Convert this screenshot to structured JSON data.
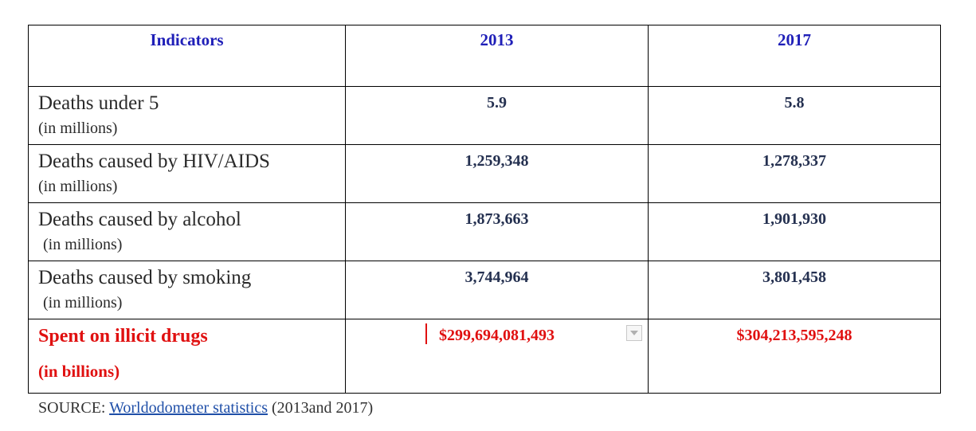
{
  "table": {
    "headers": [
      "Indicators",
      "2013",
      "2017"
    ],
    "rows": [
      {
        "label": "Deaths under 5",
        "sub": "(in millions)",
        "v2013": "5.9",
        "v2017": "5.8"
      },
      {
        "label": "Deaths caused by HIV/AIDS",
        "sub": "(in millions)",
        "v2013": "1,259,348",
        "v2017": "1,278,337"
      },
      {
        "label": "Deaths caused by alcohol",
        "sub": "(in millions)",
        "v2013": "1,873,663",
        "v2017": "1,901,930"
      },
      {
        "label": "Deaths caused by smoking",
        "sub": "(in millions)",
        "v2013": "3,744,964",
        "v2017": "3,801,458"
      },
      {
        "label": "Spent on illicit drugs",
        "sub": "(in billions)",
        "v2013": "$299,694,081,493",
        "v2017": "$304,213,595,248"
      }
    ]
  },
  "source": {
    "prefix": "SOURCE: ",
    "link_text": "Worldodometer statistics",
    "suffix": " (2013and 2017)"
  },
  "colors": {
    "header_text": "#1f1fb8",
    "highlight_red": "#e01010",
    "value_text": "#243050",
    "link": "#1f4fa8"
  }
}
